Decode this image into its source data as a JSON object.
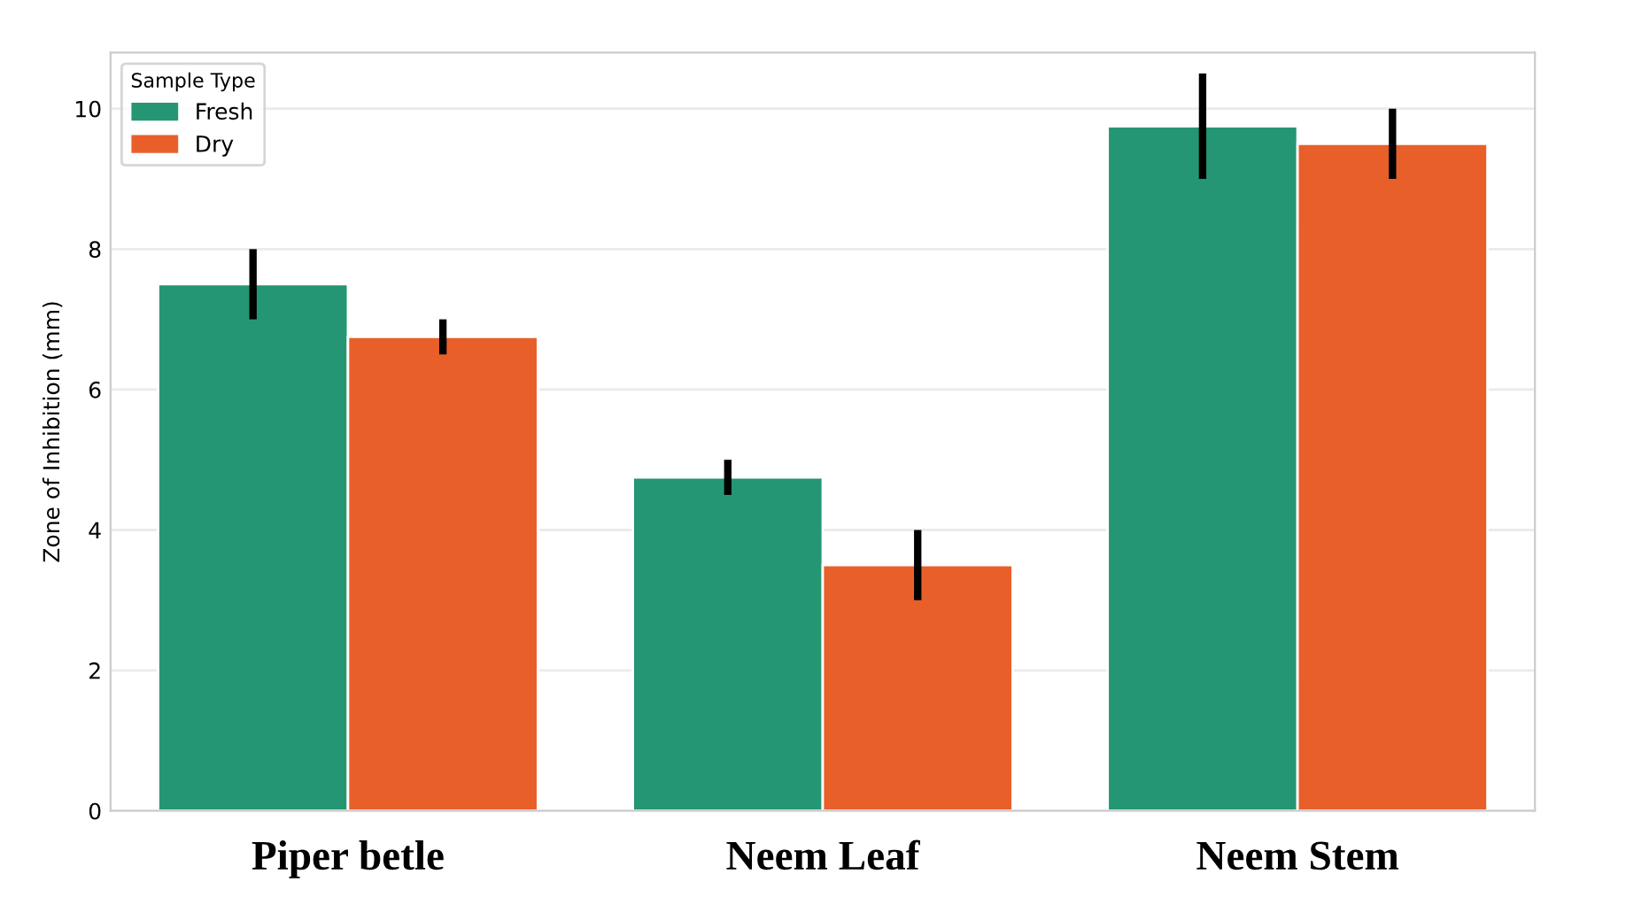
{
  "chart_data": {
    "type": "bar",
    "ylabel": "Zone of Inhibition (mm)",
    "legend_title": "Sample Type",
    "categories": [
      "Piper betle",
      "Neem Leaf",
      "Neem Stem"
    ],
    "series": [
      {
        "name": "Fresh",
        "color": "#259673",
        "values": [
          7.5,
          4.75,
          9.75
        ],
        "errors": [
          0.5,
          0.25,
          0.75
        ]
      },
      {
        "name": "Dry",
        "color": "#e95f2a",
        "values": [
          6.75,
          3.5,
          9.5
        ],
        "errors": [
          0.25,
          0.5,
          0.5
        ]
      }
    ],
    "ylim": [
      0,
      10.8
    ],
    "yticks": [
      0,
      2,
      4,
      6,
      8,
      10
    ],
    "grid": "y",
    "legend": "top left"
  }
}
